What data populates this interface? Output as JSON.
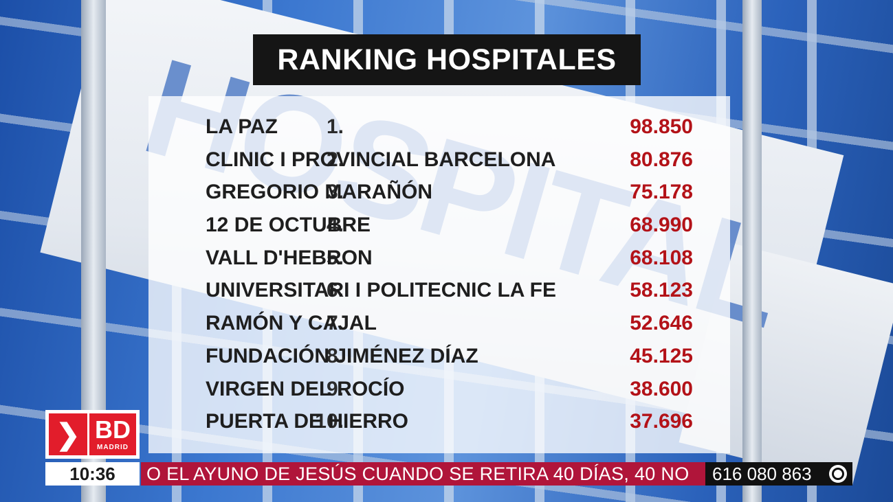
{
  "title": "RANKING HOSPITALES",
  "ranking": [
    {
      "rank": "1.",
      "name": "LA PAZ",
      "score": "98.850"
    },
    {
      "rank": "2.",
      "name": "CLINIC I PROVINCIAL BARCELONA",
      "score": "80.876"
    },
    {
      "rank": "3.",
      "name": "GREGORIO MARAÑÓN",
      "score": "75.178"
    },
    {
      "rank": "4.",
      "name": "12 DE OCTUBRE",
      "score": "68.990"
    },
    {
      "rank": "5.",
      "name": "VALL D'HEBRON",
      "score": "68.108"
    },
    {
      "rank": "6.",
      "name": "UNIVERSITARI I POLITECNIC LA FE",
      "score": "58.123"
    },
    {
      "rank": "7.",
      "name": "RAMÓN Y CAJAL",
      "score": "52.646"
    },
    {
      "rank": "8.",
      "name": "FUNDACIÓN JIMÉNEZ DÍAZ",
      "score": "45.125"
    },
    {
      "rank": "9.",
      "name": "VIRGEN DEL ROCÍO",
      "score": "38.600"
    },
    {
      "rank": "10.",
      "name": "PUERTA DE HIERRO",
      "score": "37.696"
    }
  ],
  "background_sign": "HOSPITAL",
  "logo": {
    "brand": "BD",
    "sub": "MADRID",
    "icon": "chevron-right-icon"
  },
  "ticker": {
    "clock": "10:36",
    "text": "O EL AYUNO DE JESÚS CUANDO SE RETIRA 40 DÍAS, 40 NO",
    "phone": "616 080 863",
    "phone_icon": "whatsapp-icon"
  },
  "colors": {
    "score": "#b31218",
    "ticker_bg": "#b0153a",
    "logo_red": "#e21d2b",
    "title_bg": "#151515"
  }
}
